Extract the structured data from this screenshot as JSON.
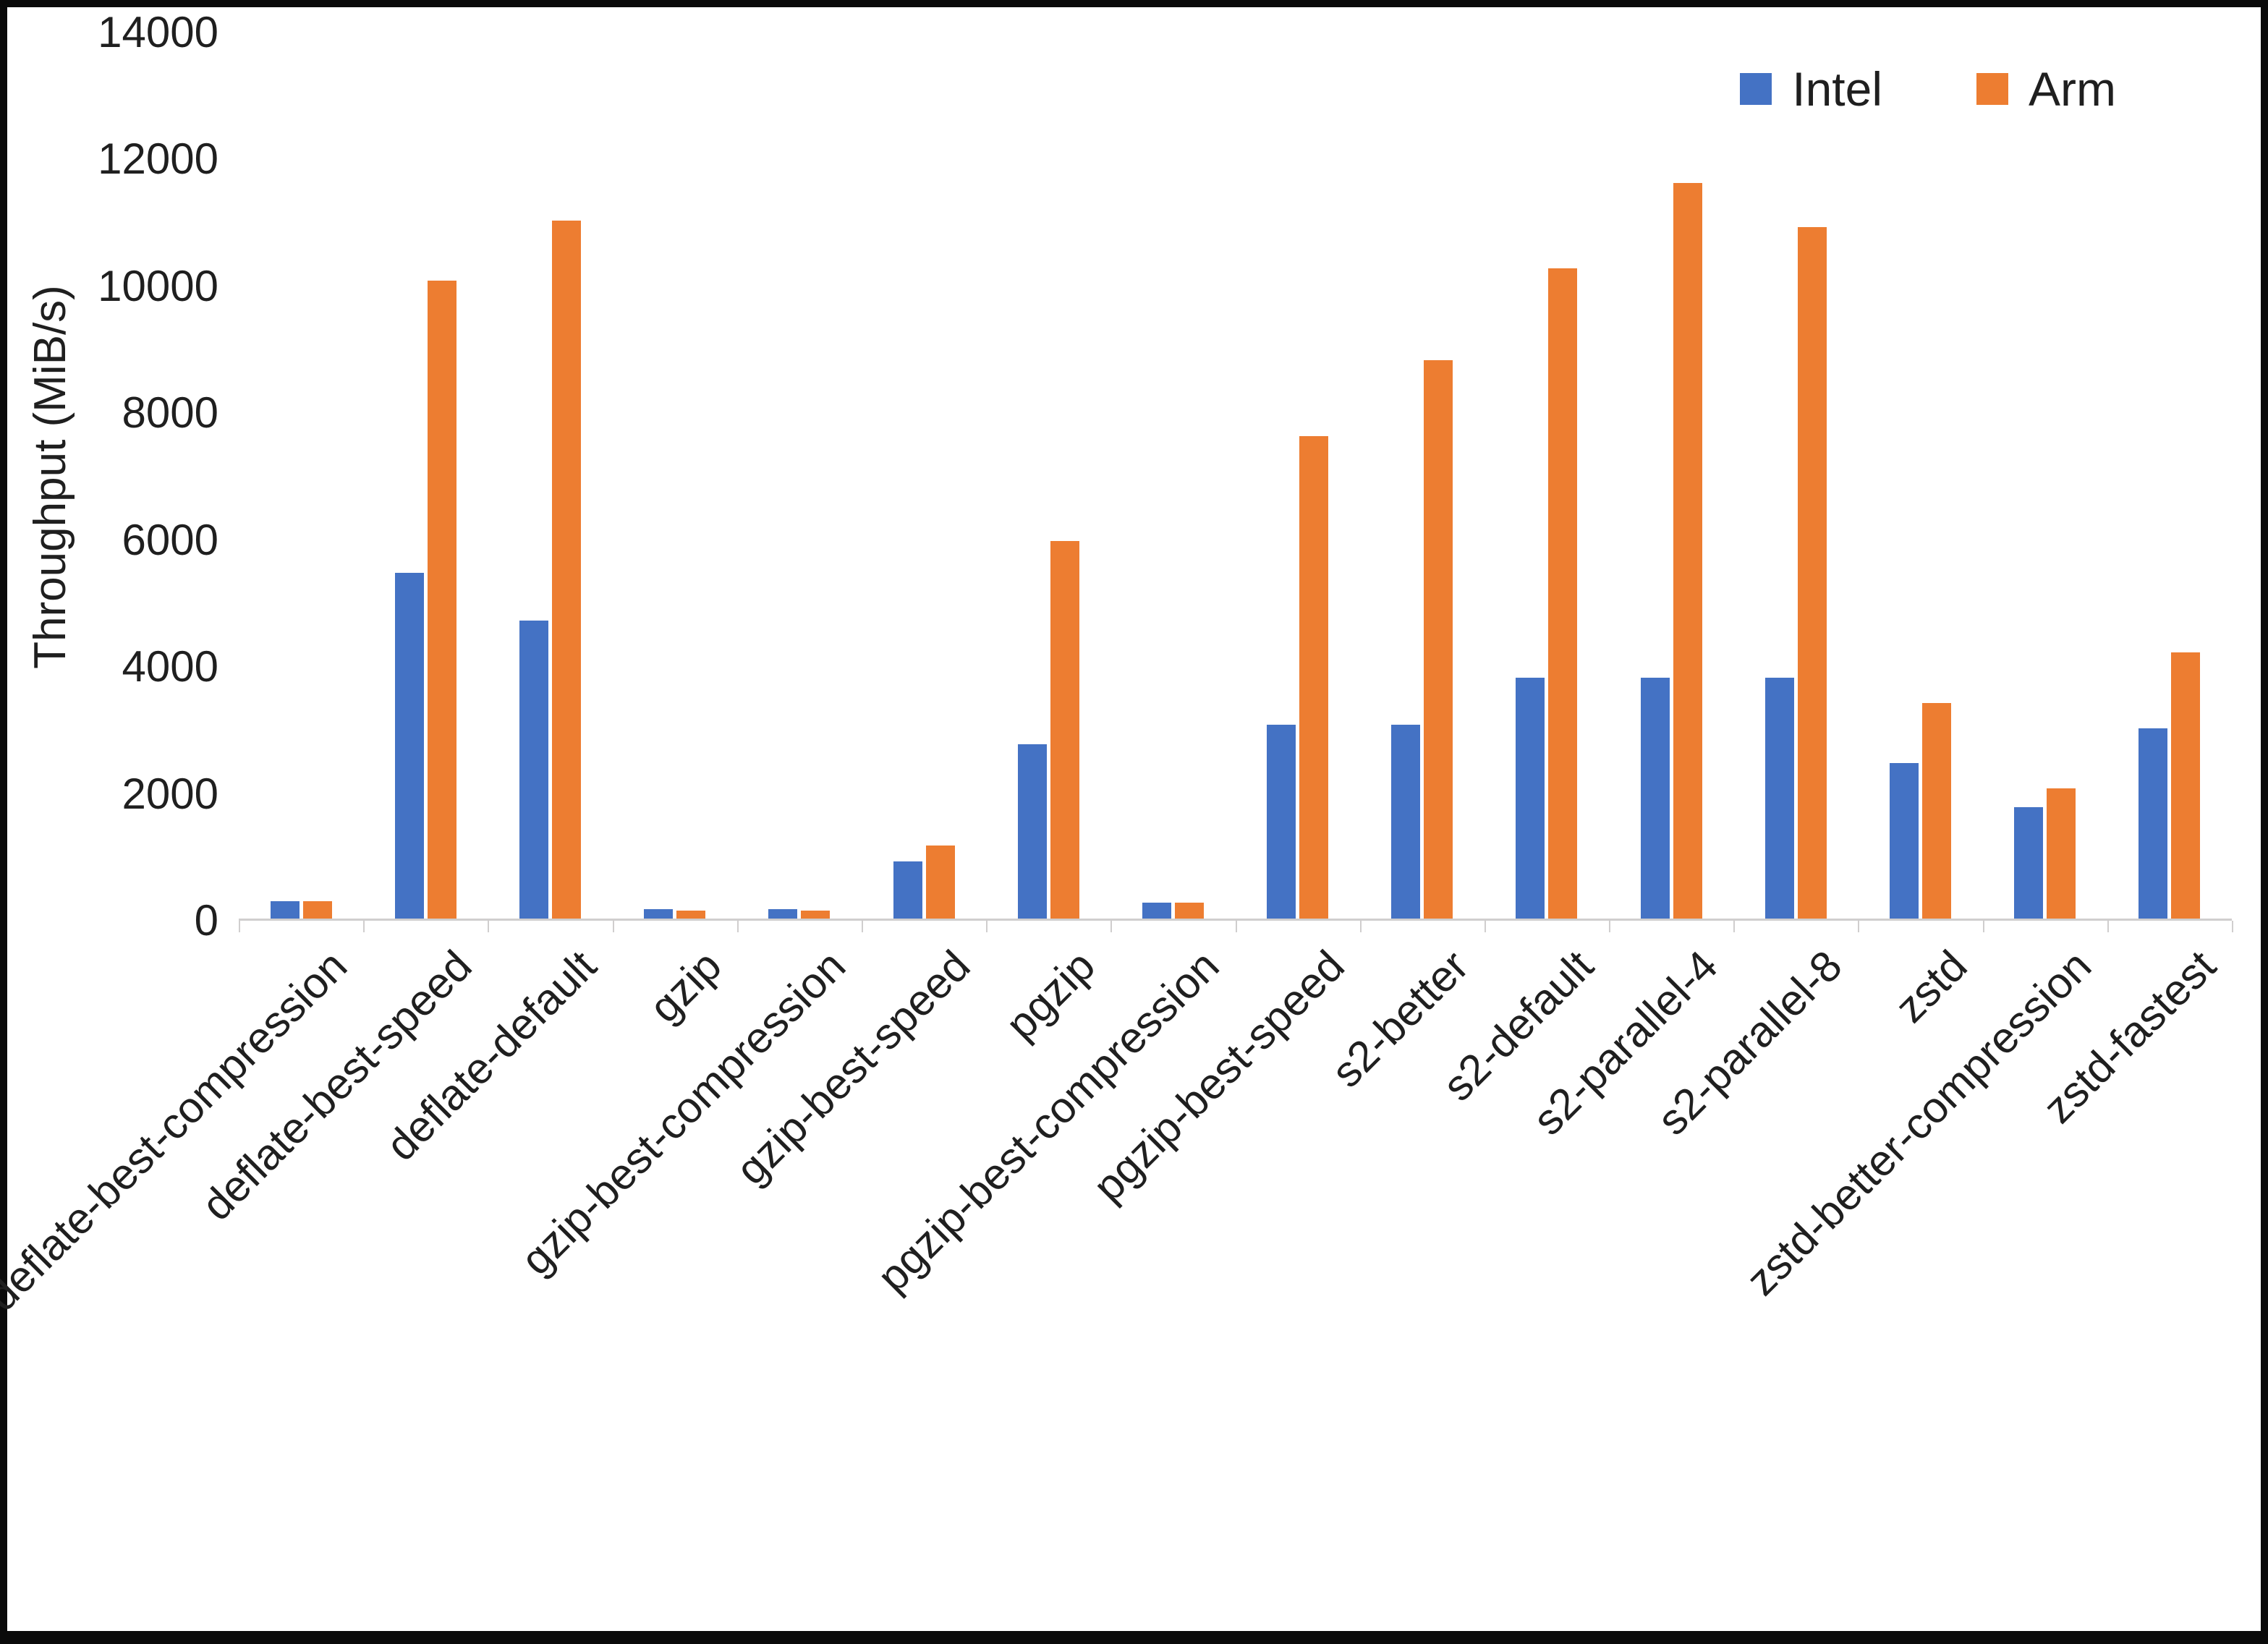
{
  "chart_data": {
    "type": "bar",
    "title": "",
    "xlabel": "",
    "ylabel": "Throughput (MiB/s)",
    "ylim": [
      0,
      14000
    ],
    "yticks": [
      0,
      2000,
      4000,
      6000,
      8000,
      10000,
      12000,
      14000
    ],
    "grid": false,
    "legend_position": "top-right",
    "categories": [
      "deflate-best-compression",
      "deflate-best-speed",
      "deflate-default",
      "gzip",
      "gzip-best-compression",
      "gzip-best-speed",
      "pgzip",
      "pgzip-best-compression",
      "pgzip-best-speed",
      "s2-better",
      "s2-default",
      "s2-parallel-4",
      "s2-parallel-8",
      "zstd",
      "zstd-better-compression",
      "zstd-fastest"
    ],
    "series": [
      {
        "name": "Intel",
        "color": "#4472C4",
        "values": [
          270,
          5450,
          4700,
          150,
          150,
          900,
          2750,
          250,
          3050,
          3050,
          3800,
          3800,
          3800,
          2450,
          1750,
          3000
        ]
      },
      {
        "name": "Arm",
        "color": "#ED7D31",
        "values": [
          270,
          10050,
          11000,
          130,
          130,
          1150,
          5950,
          250,
          7600,
          8800,
          10250,
          11600,
          10900,
          3400,
          2050,
          4200
        ]
      }
    ],
    "axis_line_color": "#d0cece",
    "text_color": "#1f1f1f"
  }
}
